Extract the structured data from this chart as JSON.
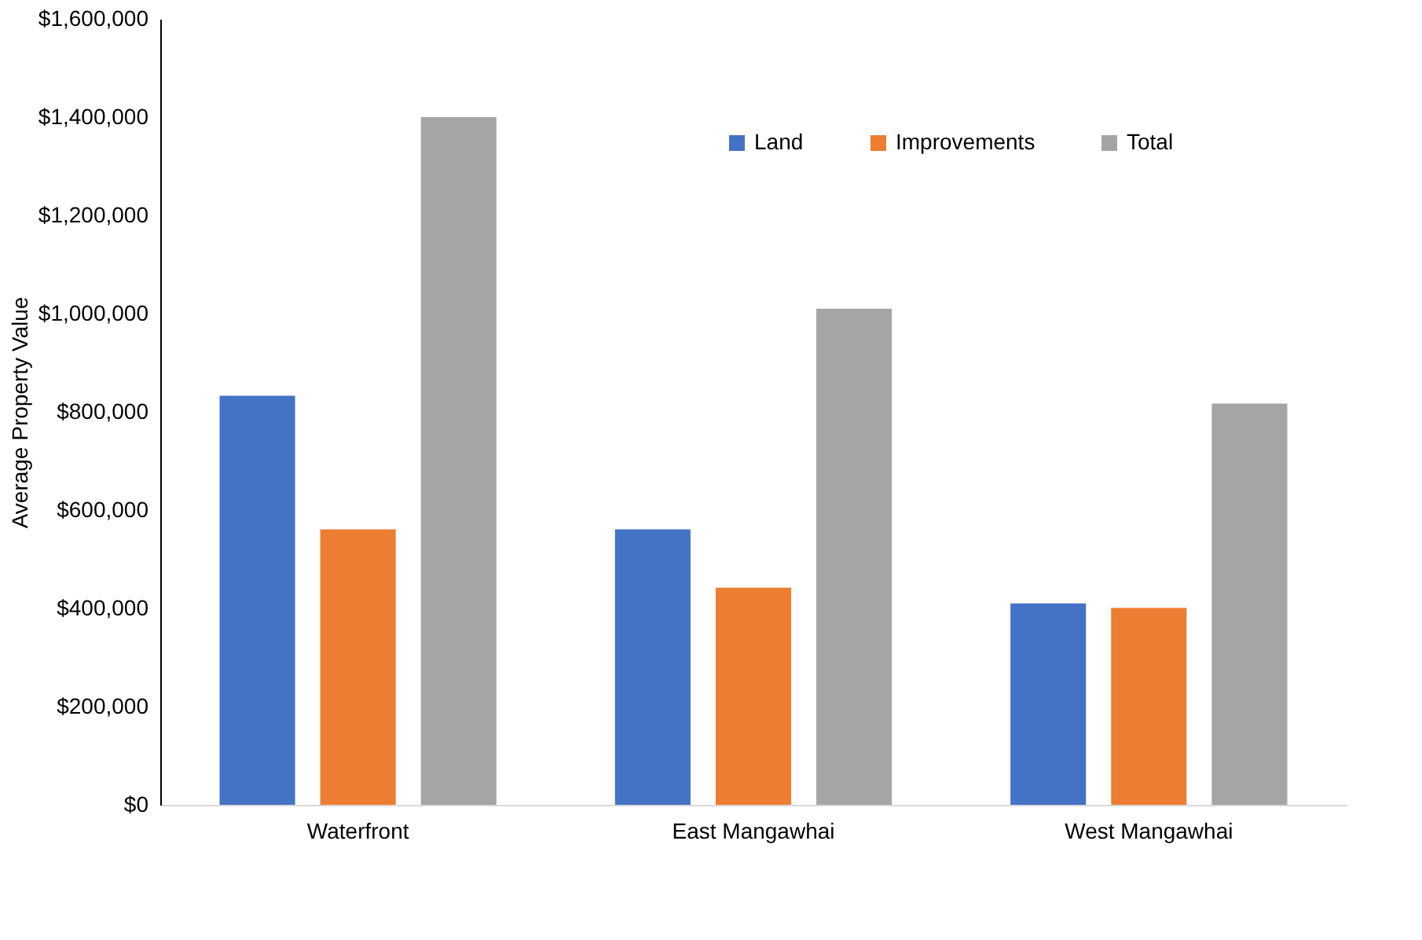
{
  "chart_data": {
    "type": "bar",
    "ylabel": "Average Property Value",
    "categories": [
      "Waterfront",
      "East Mangawhai",
      "West Mangawhai"
    ],
    "series": [
      {
        "name": "Land",
        "color": "#4472c4",
        "values": [
          833000,
          561000,
          410000
        ]
      },
      {
        "name": "Improvements",
        "color": "#ed7d31",
        "values": [
          561000,
          442000,
          401000
        ]
      },
      {
        "name": "Total",
        "color": "#a5a5a5",
        "values": [
          1400000,
          1010000,
          817000
        ]
      }
    ],
    "ylim": [
      0,
      1600000
    ],
    "yticks": [
      {
        "value": 0,
        "label": "$0"
      },
      {
        "value": 200000,
        "label": "$200,000"
      },
      {
        "value": 400000,
        "label": "$400,000"
      },
      {
        "value": 600000,
        "label": "$600,000"
      },
      {
        "value": 800000,
        "label": "$800,000"
      },
      {
        "value": 1000000,
        "label": "$1,000,000"
      },
      {
        "value": 1200000,
        "label": "$1,200,000"
      },
      {
        "value": 1400000,
        "label": "$1,400,000"
      },
      {
        "value": 1600000,
        "label": "$1,600,000"
      }
    ],
    "grid": false,
    "legend": "top"
  }
}
